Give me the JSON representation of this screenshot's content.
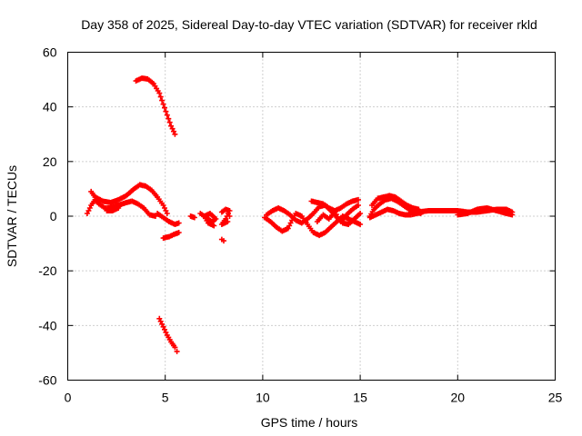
{
  "chart_data": {
    "type": "scatter",
    "title": "Day 358 of 2025, Sidereal Day-to-day VTEC variation (SDTVAR) for receiver rkld",
    "xlabel": "GPS time / hours",
    "ylabel": "SDTVAR / TECUs",
    "xlim": [
      0,
      25
    ],
    "ylim": [
      -60,
      60
    ],
    "xticks": [
      "0",
      "5",
      "10",
      "15",
      "20",
      "25"
    ],
    "yticks": [
      "60",
      "40",
      "20",
      "0",
      "-20",
      "-40",
      "-60"
    ],
    "xtick_values": [
      0,
      5,
      10,
      15,
      20,
      25
    ],
    "ytick_values": [
      60,
      40,
      20,
      0,
      -20,
      -40,
      -60
    ],
    "grid": true,
    "marker": "plus",
    "series_color": "#ff0000",
    "segments": [
      [
        [
          3.5,
          49.5
        ],
        [
          3.8,
          50.5
        ],
        [
          4.1,
          50.2
        ],
        [
          4.4,
          48.5
        ],
        [
          4.7,
          45.0
        ],
        [
          4.9,
          41.0
        ],
        [
          5.1,
          37.0
        ],
        [
          5.3,
          33.0
        ],
        [
          5.5,
          30.0
        ]
      ],
      [
        [
          4.7,
          -37.5
        ],
        [
          4.9,
          -40.5
        ],
        [
          5.1,
          -43.5
        ],
        [
          5.3,
          -46.0
        ],
        [
          5.5,
          -48.0
        ],
        [
          5.6,
          -49.5
        ]
      ],
      [
        [
          1.0,
          1.0
        ],
        [
          1.2,
          4.0
        ],
        [
          1.4,
          6.0
        ],
        [
          1.6,
          4.5
        ],
        [
          1.9,
          3.0
        ],
        [
          2.2,
          3.0
        ],
        [
          2.6,
          4.0
        ],
        [
          3.0,
          5.0
        ],
        [
          3.3,
          5.5
        ],
        [
          3.6,
          4.5
        ],
        [
          3.9,
          3.0
        ],
        [
          4.2,
          0.5
        ],
        [
          4.5,
          0.0
        ]
      ],
      [
        [
          1.2,
          9.0
        ],
        [
          1.4,
          7.0
        ],
        [
          1.8,
          5.5
        ],
        [
          2.2,
          5.0
        ],
        [
          2.6,
          6.0
        ],
        [
          3.0,
          7.5
        ],
        [
          3.4,
          10.0
        ],
        [
          3.7,
          11.5
        ],
        [
          4.0,
          11.0
        ],
        [
          4.3,
          9.5
        ],
        [
          4.6,
          7.0
        ],
        [
          4.9,
          4.0
        ],
        [
          5.1,
          1.0
        ],
        [
          5.2,
          -2.0
        ]
      ],
      [
        [
          2.0,
          2.0
        ],
        [
          2.3,
          2.0
        ],
        [
          2.6,
          3.0
        ]
      ],
      [
        [
          4.6,
          1.0
        ],
        [
          4.9,
          -0.5
        ],
        [
          5.2,
          -2.0
        ],
        [
          5.5,
          -3.0
        ],
        [
          5.7,
          -2.5
        ]
      ],
      [
        [
          4.9,
          -8.0
        ],
        [
          5.2,
          -7.5
        ],
        [
          5.5,
          -6.5
        ],
        [
          5.7,
          -6.0
        ]
      ],
      [
        [
          6.3,
          0.0
        ],
        [
          6.5,
          -0.5
        ]
      ],
      [
        [
          6.8,
          1.0
        ],
        [
          7.1,
          -0.5
        ],
        [
          7.4,
          -2.0
        ],
        [
          7.6,
          -1.0
        ],
        [
          7.3,
          1.0
        ],
        [
          7.0,
          0.0
        ],
        [
          7.2,
          -2.5
        ],
        [
          7.5,
          -3.5
        ]
      ],
      [
        [
          7.9,
          -8.5
        ],
        [
          8.0,
          -9.0
        ]
      ],
      [
        [
          7.9,
          1.5
        ],
        [
          8.1,
          2.5
        ],
        [
          8.3,
          2.0
        ],
        [
          8.1,
          -1.0
        ],
        [
          7.9,
          -3.0
        ],
        [
          8.2,
          -2.0
        ],
        [
          8.3,
          0.0
        ]
      ],
      [
        [
          10.1,
          -0.5
        ],
        [
          10.4,
          -2.0
        ],
        [
          10.7,
          -4.0
        ],
        [
          11.0,
          -5.5
        ],
        [
          11.3,
          -4.5
        ],
        [
          11.5,
          -1.5
        ],
        [
          11.7,
          1.0
        ],
        [
          12.0,
          0.0
        ],
        [
          12.3,
          -3.0
        ],
        [
          12.6,
          -6.0
        ],
        [
          12.9,
          -7.0
        ],
        [
          13.2,
          -6.0
        ],
        [
          13.5,
          -4.0
        ],
        [
          13.8,
          -2.0
        ],
        [
          14.1,
          0.0
        ],
        [
          14.4,
          -1.0
        ],
        [
          14.7,
          -2.0
        ],
        [
          15.0,
          -3.0
        ]
      ],
      [
        [
          10.2,
          0.5
        ],
        [
          10.5,
          2.0
        ],
        [
          10.8,
          3.0
        ],
        [
          11.1,
          2.0
        ],
        [
          11.4,
          0.5
        ],
        [
          11.7,
          -1.5
        ],
        [
          12.0,
          -2.5
        ],
        [
          12.3,
          -1.0
        ],
        [
          12.6,
          1.0
        ],
        [
          12.9,
          3.5
        ],
        [
          13.2,
          4.0
        ],
        [
          13.5,
          2.0
        ],
        [
          13.8,
          -0.5
        ],
        [
          14.1,
          -2.5
        ],
        [
          14.4,
          -3.0
        ],
        [
          14.7,
          -1.0
        ],
        [
          15.0,
          1.0
        ]
      ],
      [
        [
          12.5,
          5.5
        ],
        [
          12.8,
          5.0
        ],
        [
          13.1,
          4.5
        ],
        [
          13.4,
          3.0
        ],
        [
          13.7,
          2.0
        ],
        [
          14.0,
          3.0
        ],
        [
          14.3,
          4.5
        ],
        [
          14.6,
          5.5
        ],
        [
          14.9,
          6.0
        ]
      ],
      [
        [
          12.8,
          -2.0
        ],
        [
          13.1,
          0.5
        ],
        [
          13.4,
          -1.0
        ],
        [
          13.7,
          1.5
        ],
        [
          14.0,
          -2.0
        ],
        [
          14.3,
          0.5
        ],
        [
          14.6,
          2.5
        ],
        [
          14.9,
          4.0
        ]
      ],
      [
        [
          15.5,
          0.0
        ],
        [
          15.7,
          2.5
        ],
        [
          16.0,
          4.5
        ],
        [
          16.3,
          6.0
        ],
        [
          16.6,
          6.5
        ],
        [
          16.9,
          5.5
        ],
        [
          17.2,
          4.0
        ],
        [
          17.5,
          2.5
        ],
        [
          17.8,
          1.5
        ],
        [
          18.1,
          1.0
        ]
      ],
      [
        [
          15.6,
          4.0
        ],
        [
          15.9,
          6.5
        ],
        [
          16.2,
          7.0
        ],
        [
          16.5,
          7.5
        ],
        [
          16.8,
          7.0
        ],
        [
          17.1,
          5.5
        ],
        [
          17.4,
          4.0
        ],
        [
          17.7,
          3.0
        ],
        [
          18.0,
          2.5
        ]
      ],
      [
        [
          15.5,
          -0.5
        ],
        [
          15.8,
          0.5
        ],
        [
          16.1,
          1.5
        ],
        [
          16.4,
          2.5
        ],
        [
          16.7,
          2.0
        ],
        [
          17.0,
          1.0
        ],
        [
          17.3,
          0.5
        ],
        [
          17.6,
          0.5
        ],
        [
          17.9,
          1.0
        ],
        [
          18.2,
          1.5
        ]
      ],
      [
        [
          18.0,
          1.5
        ],
        [
          18.5,
          2.0
        ],
        [
          19.0,
          2.0
        ],
        [
          19.5,
          2.0
        ],
        [
          20.0,
          2.0
        ],
        [
          20.5,
          1.5
        ],
        [
          21.0,
          1.5
        ],
        [
          21.5,
          2.0
        ],
        [
          22.0,
          2.5
        ],
        [
          22.5,
          2.5
        ],
        [
          22.8,
          1.5
        ]
      ],
      [
        [
          20.0,
          0.5
        ],
        [
          20.5,
          1.0
        ],
        [
          21.0,
          2.5
        ],
        [
          21.5,
          3.0
        ],
        [
          22.0,
          2.0
        ],
        [
          22.5,
          1.0
        ],
        [
          22.8,
          0.5
        ]
      ]
    ]
  }
}
